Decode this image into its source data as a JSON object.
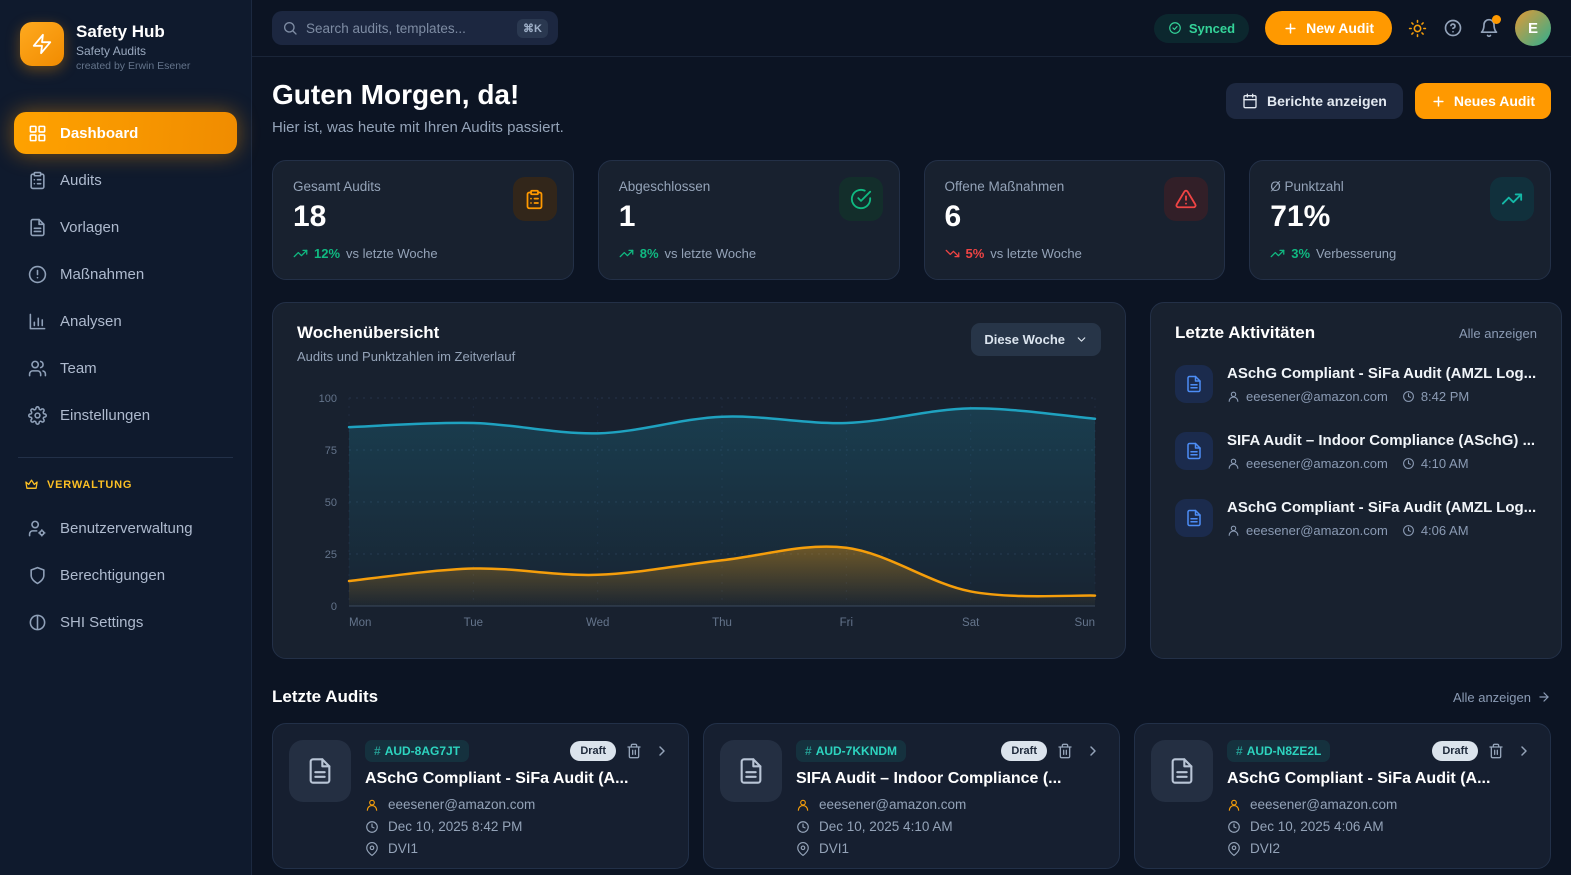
{
  "brand": {
    "name": "Safety Hub",
    "product": "Safety Audits",
    "credit": "created by Erwin Esener"
  },
  "topbar": {
    "search_placeholder": "Search audits, templates...",
    "search_shortcut": "⌘K",
    "synced_label": "Synced",
    "new_audit_label": "New Audit",
    "avatar_initial": "E"
  },
  "sidebar": {
    "items": [
      {
        "label": "Dashboard"
      },
      {
        "label": "Audits"
      },
      {
        "label": "Vorlagen"
      },
      {
        "label": "Maßnahmen"
      },
      {
        "label": "Analysen"
      },
      {
        "label": "Team"
      },
      {
        "label": "Einstellungen"
      }
    ],
    "section_label": "VERWALTUNG",
    "admin_items": [
      {
        "label": "Benutzerverwaltung"
      },
      {
        "label": "Berechtigungen"
      },
      {
        "label": "SHI Settings"
      }
    ]
  },
  "page_header": {
    "greeting": "Guten Morgen, da!",
    "subtitle": "Hier ist, was heute mit Ihren Audits passiert.",
    "reports_button": "Berichte anzeigen",
    "new_audit_button": "Neues Audit"
  },
  "stats": [
    {
      "label": "Gesamt Audits",
      "value": "18",
      "trend_value": "12%",
      "trend_text": "vs letzte Woche",
      "direction": "up"
    },
    {
      "label": "Abgeschlossen",
      "value": "1",
      "trend_value": "8%",
      "trend_text": "vs letzte Woche",
      "direction": "up"
    },
    {
      "label": "Offene Maßnahmen",
      "value": "6",
      "trend_value": "5%",
      "trend_text": "vs letzte Woche",
      "direction": "down"
    },
    {
      "label": "Ø Punktzahl",
      "value": "71%",
      "trend_value": "3%",
      "trend_text": "Verbesserung",
      "direction": "up"
    }
  ],
  "chart_card": {
    "title": "Wochenübersicht",
    "subtitle": "Audits und Punktzahlen im Zeitverlauf",
    "range_value": "Diese Woche"
  },
  "chart_data": {
    "type": "area",
    "x": [
      "Mon",
      "Tue",
      "Wed",
      "Thu",
      "Fri",
      "Sat",
      "Sun"
    ],
    "series": [
      {
        "name": "Punktzahl",
        "color": "#1fa2c0",
        "values": [
          86,
          88,
          83,
          91,
          88,
          95,
          90
        ]
      },
      {
        "name": "Audits",
        "color": "#f59e0b",
        "values": [
          12,
          18,
          15,
          22,
          28,
          7,
          5
        ]
      }
    ],
    "ylim": [
      0,
      100
    ],
    "yticks": [
      0,
      25,
      50,
      75,
      100
    ],
    "grid": true,
    "legend_position": "none"
  },
  "activities": {
    "title": "Letzte Aktivitäten",
    "view_all": "Alle anzeigen",
    "items": [
      {
        "title": "ASchG Compliant - SiFa Audit (AMZL Log...",
        "user": "eeesener@amazon.com",
        "time": "8:42 PM"
      },
      {
        "title": "SIFA Audit – Indoor Compliance (ASchG) ...",
        "user": "eeesener@amazon.com",
        "time": "4:10 AM"
      },
      {
        "title": "ASchG Compliant - SiFa Audit (AMZL Log...",
        "user": "eeesener@amazon.com",
        "time": "4:06 AM"
      }
    ]
  },
  "recent_audits": {
    "title": "Letzte Audits",
    "view_all": "Alle anzeigen",
    "cards": [
      {
        "audit_id": "AUD-8AG7JT",
        "status": "Draft",
        "title": "ASchG Compliant - SiFa Audit (A...",
        "user": "eeesener@amazon.com",
        "date": "Dec 10, 2025 8:42 PM",
        "location": "DVI1"
      },
      {
        "audit_id": "AUD-7KKNDM",
        "status": "Draft",
        "title": "SIFA Audit – Indoor Compliance (...",
        "user": "eeesener@amazon.com",
        "date": "Dec 10, 2025 4:10 AM",
        "location": "DVI1"
      },
      {
        "audit_id": "AUD-N8ZE2L",
        "status": "Draft",
        "title": "ASchG Compliant - SiFa Audit (A...",
        "user": "eeesener@amazon.com",
        "date": "Dec 10, 2025 4:06 AM",
        "location": "DVI2"
      }
    ]
  },
  "colors": {
    "accent": "#ff9900",
    "positive": "#10b981",
    "negative": "#ef4444",
    "teal": "#1fa2c0",
    "blue": "#3b82f6",
    "gold": "#fbbf24"
  }
}
